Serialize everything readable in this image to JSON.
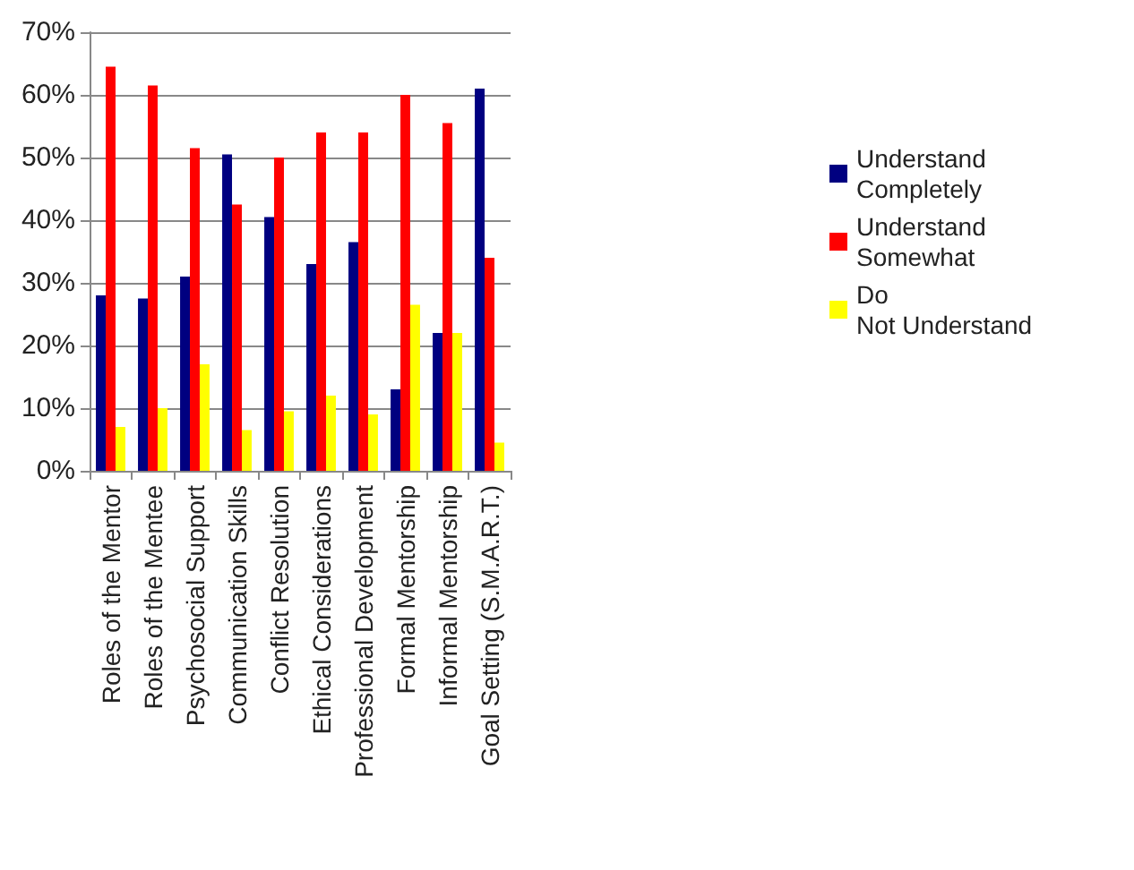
{
  "chart_data": {
    "type": "bar",
    "categories": [
      "Roles of the Mentor",
      "Roles of the Mentee",
      "Psychosocial Support",
      "Communication Skills",
      "Conflict Resolution",
      "Ethical Considerations",
      "Professional Development",
      "Formal Mentorship",
      "Informal Mentorship",
      "Goal Setting (S.M.A.R.T.)"
    ],
    "series": [
      {
        "name": "Understand Completely",
        "color": "#000080",
        "values": [
          28,
          27.5,
          31,
          50.5,
          40.5,
          33,
          36.5,
          13,
          22,
          61
        ]
      },
      {
        "name": "Understand Somewhat",
        "color": "#ff0000",
        "values": [
          64.5,
          61.5,
          51.5,
          42.5,
          50,
          54,
          54,
          60,
          55.5,
          34
        ]
      },
      {
        "name": "Do Not Understand",
        "color": "#ffff00",
        "values": [
          7,
          10,
          17,
          6.5,
          9.5,
          12,
          9,
          26.5,
          22,
          4.5
        ]
      }
    ],
    "ylim": [
      0,
      70
    ],
    "yticks": [
      {
        "value": 0,
        "label": "0%"
      },
      {
        "value": 10,
        "label": "10%"
      },
      {
        "value": 20,
        "label": "20%"
      },
      {
        "value": 30,
        "label": "30%"
      },
      {
        "value": 40,
        "label": "40%"
      },
      {
        "value": 50,
        "label": "50%"
      },
      {
        "value": 60,
        "label": "60%"
      },
      {
        "value": 70,
        "label": "70%"
      }
    ],
    "grid": "y",
    "legend": "right"
  }
}
